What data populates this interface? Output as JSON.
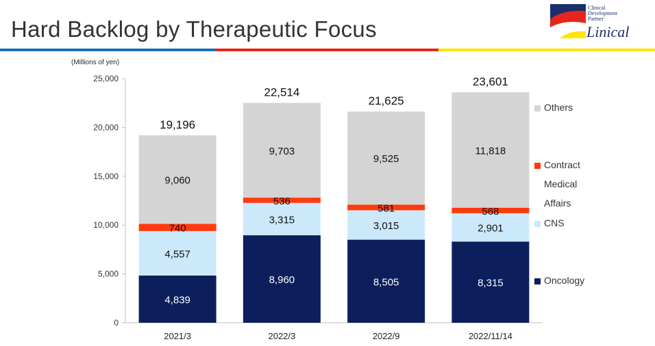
{
  "header": {
    "title": "Hard Backlog by Therapeutic Focus",
    "rule_colors": [
      "#1f6fb5",
      "#e8251c",
      "#ffe600"
    ]
  },
  "logo": {
    "tagline_lines": [
      "Clinical",
      "Development",
      "Partner"
    ],
    "name": "Linical"
  },
  "chart_data": {
    "type": "bar",
    "stacked": true,
    "unit_label": "(Millions of yen)",
    "categories": [
      "2021/3",
      "2022/3",
      "2022/9",
      "2022/11/14"
    ],
    "series": [
      {
        "name": "Oncology",
        "values": [
          4839,
          8960,
          8505,
          8315
        ],
        "color": "#0c1f5c",
        "label_color": "#ffffff"
      },
      {
        "name": "CNS",
        "values": [
          4557,
          3315,
          3015,
          2901
        ],
        "color": "#cce9fb",
        "label_color": "#111111"
      },
      {
        "name": "Contract Medical Affairs",
        "values": [
          740,
          536,
          581,
          568
        ],
        "color": "#ff3a0d",
        "label_color": "#111111"
      },
      {
        "name": "Others",
        "values": [
          9060,
          9703,
          9525,
          11818
        ],
        "color": "#d4d4d4",
        "label_color": "#111111"
      }
    ],
    "totals": [
      19196,
      22514,
      21625,
      23601
    ],
    "ylim": [
      0,
      25000
    ],
    "yticks": [
      0,
      5000,
      10000,
      15000,
      20000,
      25000
    ],
    "grid": false,
    "legend_position": "right"
  },
  "legend": {
    "items": [
      {
        "lines": [
          "Others"
        ],
        "color": "#d4d4d4"
      },
      {
        "lines": [
          "Contract",
          "Medical",
          "Affairs"
        ],
        "color": "#ff3a0d"
      },
      {
        "lines": [
          "CNS"
        ],
        "color": "#cce9fb"
      },
      {
        "lines": [
          "Oncology"
        ],
        "color": "#0c1f5c"
      }
    ]
  }
}
